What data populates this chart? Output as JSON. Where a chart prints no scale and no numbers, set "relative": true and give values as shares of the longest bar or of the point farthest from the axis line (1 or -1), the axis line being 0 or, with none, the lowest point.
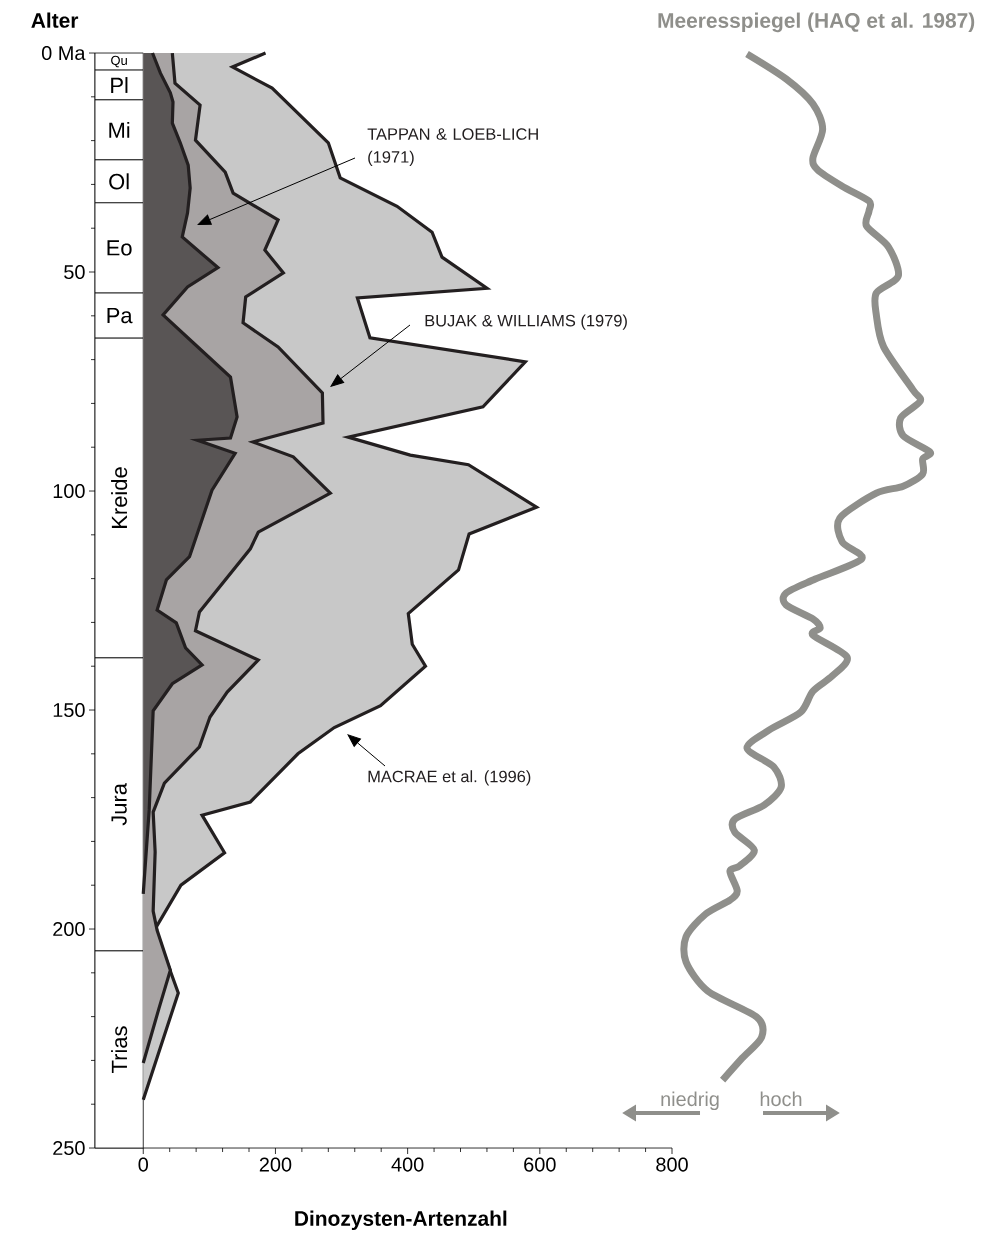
{
  "chart_data": [
    {
      "type": "area",
      "orientation": "horizontal",
      "xlabel": "Dinozysten-Artenzahl",
      "ylabel": "Alter",
      "xlim": [
        -73,
        800
      ],
      "xticks": [
        0,
        200,
        400,
        600,
        800
      ],
      "ylim": [
        250,
        0
      ],
      "yticks": [
        {
          "value": 0,
          "label": "0 Ma"
        },
        50,
        100,
        150,
        200,
        250
      ],
      "bands": [
        {
          "axis": "y",
          "from": 0,
          "to": 3.9,
          "label": "Qu"
        },
        {
          "axis": "y",
          "from": 3.9,
          "to": 10.7,
          "label": "Pl"
        },
        {
          "axis": "y",
          "from": 10.7,
          "to": 24.4,
          "label": "Mi"
        },
        {
          "axis": "y",
          "from": 24.4,
          "to": 34.2,
          "label": "Ol"
        },
        {
          "axis": "y",
          "from": 34.2,
          "to": 54.8,
          "label": "Eo"
        },
        {
          "axis": "y",
          "from": 54.8,
          "to": 65.1,
          "label": "Pa"
        },
        {
          "axis": "y",
          "from": 65.1,
          "to": 138.1,
          "label": "Kreide"
        },
        {
          "axis": "y",
          "from": 138.1,
          "to": 205,
          "label": "Jura"
        },
        {
          "axis": "y",
          "from": 205,
          "to": 250,
          "label": "Trias"
        }
      ],
      "series": [
        {
          "color": "#c8c8c8",
          "x": [
            0,
            3.2,
            8,
            20.5,
            28.5,
            35,
            40.9,
            46.6,
            53.7,
            55.9,
            65,
            70.5,
            80.8,
            87.7,
            91.8,
            94,
            103.7,
            109.8,
            118,
            128,
            135,
            140,
            149,
            154,
            160,
            171,
            174,
            182.6,
            190,
            200,
            214.6,
            239
          ],
          "values": [
            185,
            135,
            195,
            280,
            298,
            384,
            437,
            452,
            520,
            324,
            343,
            578,
            514,
            310,
            404,
            492,
            595,
            493,
            477,
            401,
            407,
            427,
            359,
            289,
            234,
            162,
            89,
            123,
            57,
            18,
            53,
            0
          ]
        },
        {
          "color": "#a8a4a4",
          "x": [
            0,
            6.9,
            11.9,
            19.9,
            27.2,
            32,
            38.1,
            45,
            50.2,
            55.7,
            61.6,
            67.1,
            77.6,
            84.5,
            88.8,
            92.2,
            100.5,
            109.4,
            113.2,
            127.6,
            131.9,
            138.6,
            145.9,
            151.6,
            158.4,
            166.7,
            173.3,
            182.4,
            195.9,
            200.3,
            209.4,
            218,
            230.6
          ],
          "values": [
            44,
            48,
            86,
            79,
            124,
            136,
            204,
            184,
            212,
            155,
            151,
            204,
            271,
            272,
            166,
            227,
            283,
            174,
            162,
            85,
            79,
            174,
            127,
            101,
            85,
            32,
            15,
            18,
            15,
            21,
            41,
            24,
            0
          ]
        },
        {
          "color": "#595555",
          "x": [
            0,
            4.6,
            9.1,
            11.2,
            16,
            20.5,
            25.6,
            30.8,
            36.5,
            42,
            49,
            53.4,
            59.8,
            66.2,
            74,
            83.1,
            87.9,
            88.4,
            91.4,
            99.8,
            115,
            120.3,
            127.2,
            130.1,
            135.8,
            139.7,
            144,
            150.2,
            172.8,
            192
          ],
          "values": [
            14,
            26,
            41,
            45,
            44,
            56,
            68,
            71,
            67,
            59,
            113,
            67,
            30,
            76,
            132,
            142,
            132,
            82,
            139,
            104,
            70,
            35,
            21,
            50,
            64,
            89,
            44,
            15,
            9,
            0
          ]
        }
      ],
      "annotations": [
        "TAPPAN & LOEB-LICH (1971)",
        "BUJAK & WILLIAMS (1979)",
        "MACRAE et al. (1996)"
      ]
    },
    {
      "type": "line",
      "orientation": "horizontal",
      "relative": true,
      "tick_labels": false,
      "title": "Meeresspiegel (HAQ et al. 1987)",
      "ylim": [
        250,
        0
      ],
      "series": [
        {
          "color": "#8f8f8b",
          "x": [
            0.2,
            5.9,
            11.6,
            17.4,
            24.0,
            26.7,
            30.4,
            33.8,
            36.1,
            39.5,
            44.3,
            50.9,
            54.8,
            59.8,
            67.1,
            76.9,
            79.5,
            83.3,
            87.4,
            91.1,
            92.7,
            96.1,
            98.9,
            100.5,
            106.2,
            111.6,
            115.5,
            120.1,
            123.3,
            126.0,
            129.2,
            131.3,
            132.9,
            137.9,
            142.2,
            145.7,
            150.5,
            154.6,
            158.7,
            163.0,
            167.6,
            171.7,
            174.9,
            177.9,
            182.0,
            185.6,
            186.8,
            191.3,
            193.4,
            196.6,
            201.8,
            207.5,
            214.2,
            220.1,
            224.7,
            229.5,
            234.5
          ],
          "values": [
            0.25,
            0.41,
            0.52,
            0.56,
            0.52,
            0.54,
            0.64,
            0.75,
            0.75,
            0.74,
            0.83,
            0.87,
            0.78,
            0.78,
            0.81,
            0.93,
            0.96,
            0.88,
            0.89,
            1.0,
            0.97,
            0.97,
            0.89,
            0.78,
            0.63,
            0.64,
            0.72,
            0.53,
            0.41,
            0.41,
            0.52,
            0.55,
            0.52,
            0.66,
            0.6,
            0.52,
            0.47,
            0.34,
            0.25,
            0.36,
            0.39,
            0.32,
            0.2,
            0.2,
            0.28,
            0.22,
            0.18,
            0.21,
            0.18,
            0.08,
            0,
            0,
            0.09,
            0.29,
            0.31,
            0.23,
            0.15
          ]
        }
      ],
      "annotations": [
        "niedrig",
        "hoch"
      ]
    }
  ]
}
